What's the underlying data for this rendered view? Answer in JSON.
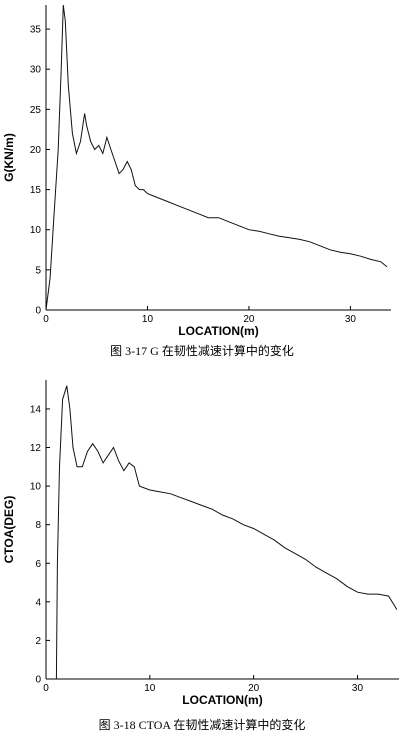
{
  "figures": [
    {
      "caption": "图 3-17   G 在韧性减速计算中的变化"
    },
    {
      "caption": "图 3-18   CTOA 在韧性减速计算中的变化"
    }
  ],
  "chart_data": [
    {
      "type": "line",
      "title": "",
      "xlabel": "LOCATION(m)",
      "ylabel": "G(KN/m)",
      "xlim": [
        0,
        34
      ],
      "ylim": [
        0,
        38
      ],
      "xticks": [
        "0",
        "10",
        "20",
        "30"
      ],
      "yticks": [
        "0",
        "5",
        "10",
        "15",
        "20",
        "25",
        "30",
        "35"
      ],
      "grid": false,
      "legend": "none",
      "series": [
        {
          "color": "#111111",
          "x": [
            0,
            0.4,
            0.8,
            1.2,
            1.5,
            1.7,
            1.9,
            2.2,
            2.6,
            3.0,
            3.4,
            3.8,
            4.0,
            4.4,
            4.8,
            5.2,
            5.6,
            6.0,
            6.4,
            6.8,
            7.2,
            7.6,
            8.0,
            8.4,
            8.8,
            9.2,
            9.6,
            10.0,
            11.0,
            12.0,
            13.0,
            14.0,
            15.0,
            16.0,
            17.0,
            18.0,
            19.0,
            20.0,
            21.0,
            22.0,
            23.0,
            24.0,
            25.0,
            26.0,
            27.0,
            28.0,
            29.0,
            30.0,
            31.0,
            32.0,
            33.0,
            33.6
          ],
          "y": [
            0,
            4,
            12,
            20,
            30,
            38,
            36,
            28,
            22,
            19.5,
            21,
            24.5,
            23,
            21,
            20,
            20.5,
            19.5,
            21.5,
            20,
            18.5,
            17,
            17.5,
            18.5,
            17.5,
            15.5,
            15,
            15,
            14.5,
            14,
            13.5,
            13,
            12.5,
            12,
            11.5,
            11.5,
            11,
            10.5,
            10,
            9.8,
            9.5,
            9.2,
            9,
            8.8,
            8.5,
            8,
            7.5,
            7.2,
            7,
            6.7,
            6.3,
            6,
            5.4
          ]
        }
      ]
    },
    {
      "type": "line",
      "title": "",
      "xlabel": "LOCATION(m)",
      "ylabel": "CTOA(DEG)",
      "xlim": [
        0,
        34
      ],
      "ylim": [
        0,
        15.5
      ],
      "xticks": [
        "0",
        "10",
        "20",
        "30"
      ],
      "yticks": [
        "0",
        "2",
        "4",
        "6",
        "8",
        "10",
        "12",
        "14"
      ],
      "grid": false,
      "legend": "none",
      "series": [
        {
          "color": "#111111",
          "x": [
            1.0,
            1.1,
            1.3,
            1.6,
            2.0,
            2.3,
            2.6,
            3.0,
            3.5,
            4.0,
            4.5,
            5.0,
            5.5,
            6.0,
            6.5,
            7.0,
            7.5,
            8.0,
            8.5,
            9.0,
            10.0,
            11.0,
            12.0,
            13.0,
            14.0,
            15.0,
            16.0,
            17.0,
            18.0,
            19.0,
            20.0,
            21.0,
            22.0,
            23.0,
            24.0,
            25.0,
            26.0,
            27.0,
            28.0,
            29.0,
            30.0,
            31.0,
            32.0,
            33.0,
            33.8
          ],
          "y": [
            0,
            6,
            11,
            14.5,
            15.2,
            14,
            12,
            11,
            11,
            11.8,
            12.2,
            11.8,
            11.2,
            11.6,
            12,
            11.3,
            10.8,
            11.2,
            11,
            10,
            9.8,
            9.7,
            9.6,
            9.4,
            9.2,
            9,
            8.8,
            8.5,
            8.3,
            8,
            7.8,
            7.5,
            7.2,
            6.8,
            6.5,
            6.2,
            5.8,
            5.5,
            5.2,
            4.8,
            4.5,
            4.4,
            4.4,
            4.3,
            3.6
          ]
        }
      ]
    }
  ]
}
